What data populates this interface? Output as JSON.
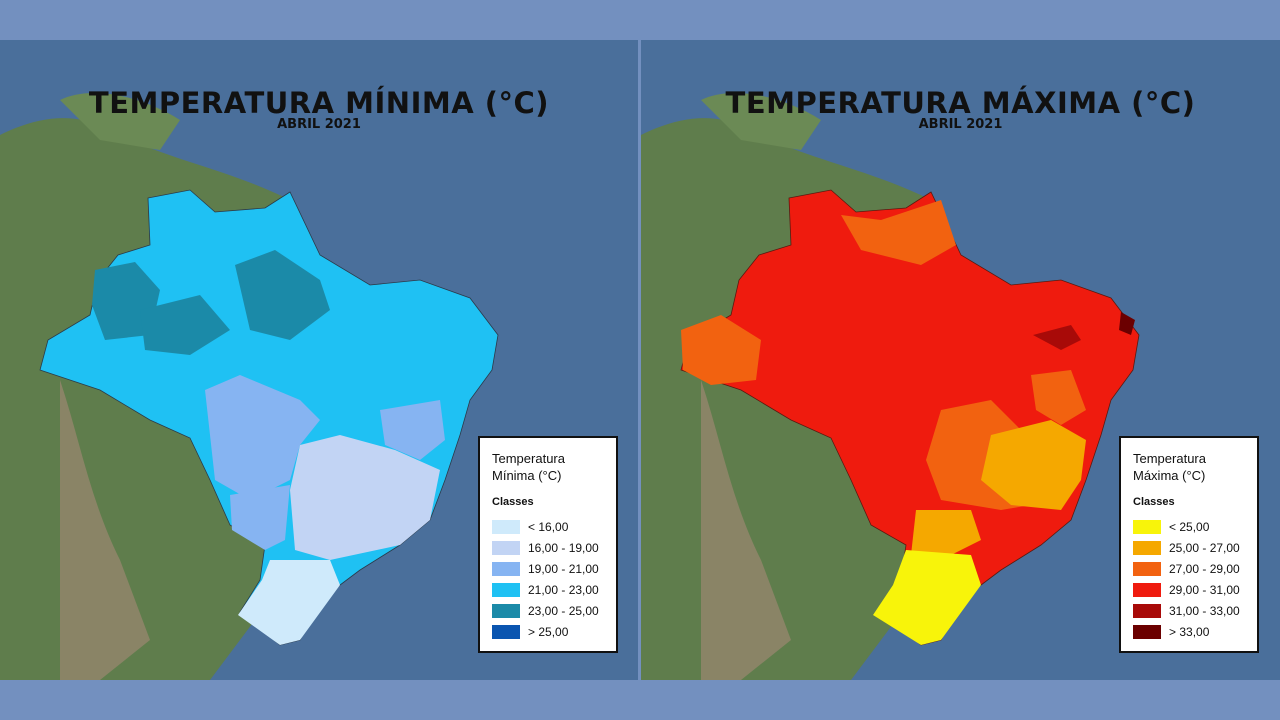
{
  "maps": [
    {
      "title": "TEMPERATURA MÍNIMA (°C)",
      "subtitle": "ABRIL 2021",
      "legend": {
        "title": "Temperatura Mínima (°C)",
        "classes_label": "Classes",
        "items": [
          {
            "label": "< 16,00",
            "color": "#cfeafb"
          },
          {
            "label": "16,00 - 19,00",
            "color": "#c2d4f4"
          },
          {
            "label": "19,00 - 21,00",
            "color": "#86b4f2"
          },
          {
            "label": "21,00 - 23,00",
            "color": "#1fc1f3"
          },
          {
            "label": "23,00 - 25,00",
            "color": "#1b8aa8"
          },
          {
            "label": "> 25,00",
            "color": "#0a55b0"
          }
        ]
      }
    },
    {
      "title": "TEMPERATURA MÁXIMA (°C)",
      "subtitle": "ABRIL 2021",
      "legend": {
        "title": "Temperatura Máxima (°C)",
        "classes_label": "Classes",
        "items": [
          {
            "label": "< 25,00",
            "color": "#f8f40a"
          },
          {
            "label": "25,00 - 27,00",
            "color": "#f5a800"
          },
          {
            "label": "27,00 - 29,00",
            "color": "#f26210"
          },
          {
            "label": "29,00 - 31,00",
            "color": "#ef1b0e"
          },
          {
            "label": "31,00 - 33,00",
            "color": "#a80a08"
          },
          {
            "label": "> 33,00",
            "color": "#6b0000"
          }
        ]
      }
    }
  ]
}
